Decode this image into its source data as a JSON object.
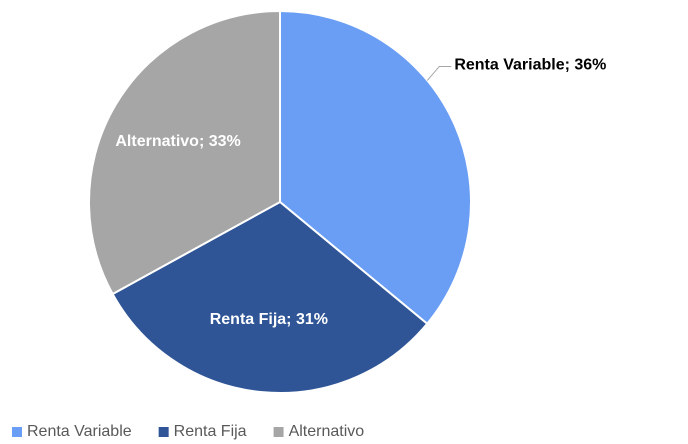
{
  "chart_data": {
    "type": "pie",
    "categories": [
      "Renta Variable",
      "Renta Fija",
      "Alternativo"
    ],
    "values": [
      36,
      31,
      33
    ],
    "value_labels": [
      "Renta Variable; 36%",
      "Renta Fija; 31%",
      "Alternativo; 33%"
    ],
    "colors": [
      "#6a9ef5",
      "#2f5597",
      "#a6a6a6"
    ],
    "legend": "bottom"
  }
}
